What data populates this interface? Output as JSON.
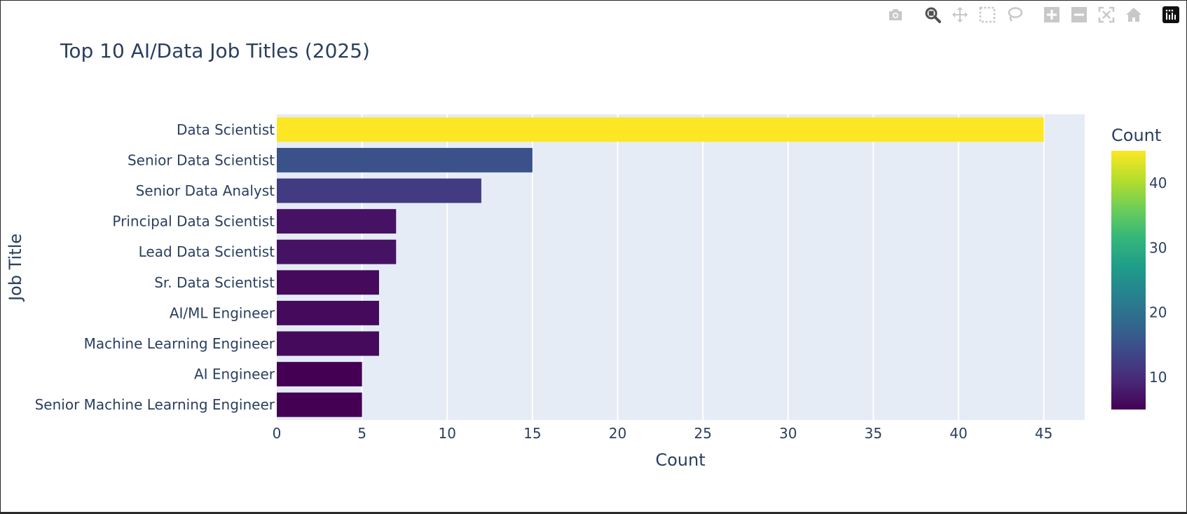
{
  "colors": {
    "plot_bg": "#E5ECF6",
    "grid": "#ffffff",
    "text": "#2a3f5f",
    "modebar_icon": "#c8c8c8",
    "modebar_active": "#505050",
    "colorscale": [
      "#440154",
      "#482878",
      "#3e4989",
      "#31688e",
      "#26828e",
      "#1f9e89",
      "#35b779",
      "#6ece58",
      "#b5de2b",
      "#fde725"
    ]
  },
  "modebar": {
    "icons": [
      "camera-icon",
      "zoom-icon",
      "pan-icon",
      "box-select-icon",
      "lasso-icon",
      "zoom-in-icon",
      "zoom-out-icon",
      "autoscale-icon",
      "reset-axes-icon",
      "plotly-logo-icon"
    ]
  },
  "chart_data": {
    "type": "bar",
    "orientation": "horizontal",
    "title": "Top 10 AI/Data Job Titles (2025)",
    "xlabel": "Count",
    "ylabel": "Job Title",
    "categories": [
      "Data Scientist",
      "Senior Data Scientist",
      "Senior Data Analyst",
      "Principal Data Scientist",
      "Lead Data Scientist",
      "Sr. Data Scientist",
      "AI/ML Engineer",
      "Machine Learning Engineer",
      "AI Engineer",
      "Senior Machine Learning Engineer"
    ],
    "values": [
      45,
      15,
      12,
      7,
      7,
      6,
      6,
      6,
      5,
      5
    ],
    "xlim": [
      0,
      47.4
    ],
    "xticks": [
      0,
      5,
      10,
      15,
      20,
      25,
      30,
      35,
      40,
      45
    ],
    "grid": true,
    "colorbar": {
      "title": "Count",
      "range": [
        5,
        45
      ],
      "ticks": [
        10,
        20,
        30,
        40
      ],
      "colorscale": "Viridis"
    }
  }
}
